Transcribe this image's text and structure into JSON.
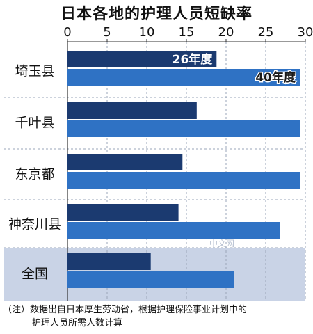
{
  "chart_data": {
    "type": "bar",
    "orientation": "horizontal",
    "title": "日本各地的护理人员短缺率",
    "categories": [
      "埼玉县",
      "千叶县",
      "东京都",
      "神奈川县",
      "全国"
    ],
    "series": [
      {
        "name": "26年度",
        "values": [
          18.8,
          16.3,
          14.5,
          14.0,
          10.5
        ],
        "color": "#1b3a70"
      },
      {
        "name": "40年度",
        "values": [
          31.0,
          30.3,
          29.5,
          26.8,
          21.0
        ],
        "color": "#2f72c4"
      }
    ],
    "xlim": [
      0,
      30
    ],
    "xticks": [
      0,
      5,
      10,
      15,
      20,
      25,
      30
    ],
    "x_unit": "%",
    "grid": true,
    "highlight_category": "全国",
    "highlight_color": "#c9d3e6"
  },
  "watermark": "中文网",
  "footnote": {
    "line1": "（注）数据出自日本厚生劳动省，根据护理保险事业计划中的",
    "line2": "护理人员所需人数计算"
  }
}
